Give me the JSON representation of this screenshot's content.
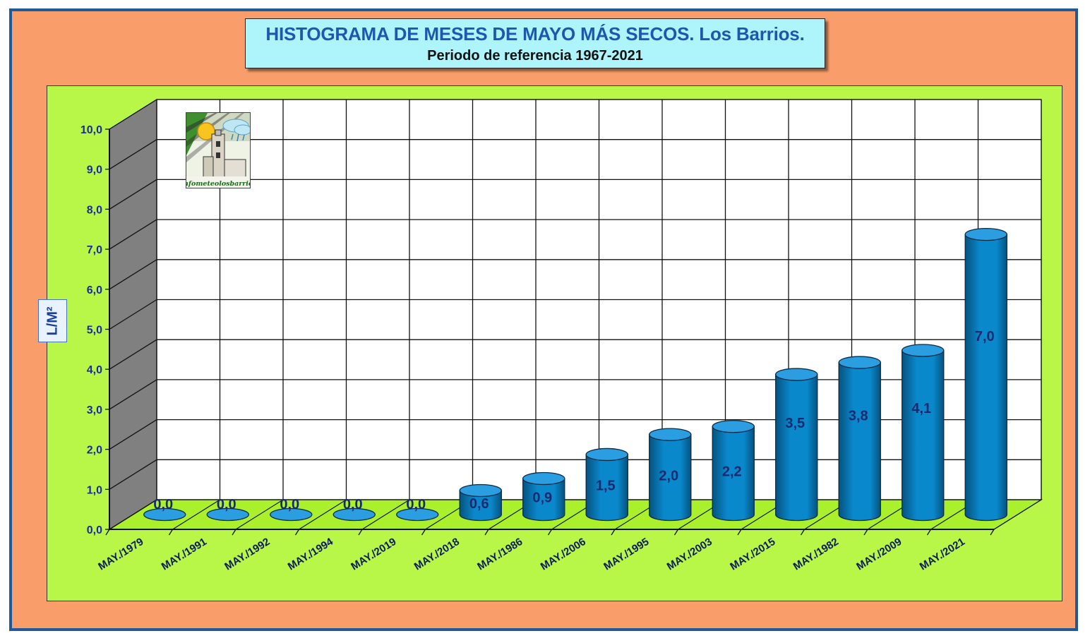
{
  "chart_data": {
    "type": "bar",
    "title": "HISTOGRAMA DE MESES DE MAYO MÁS SECOS. Los Barrios.",
    "subtitle": "Periodo de referencia 1967-2021",
    "xlabel": "",
    "ylabel": "L/M²",
    "ylim": [
      0,
      10
    ],
    "y_ticks": [
      "0,0",
      "1,0",
      "2,0",
      "3,0",
      "4,0",
      "5,0",
      "6,0",
      "7,0",
      "8,0",
      "9,0",
      "10,0"
    ],
    "grid": true,
    "legend": "none",
    "categories": [
      "MAY./1979",
      "MAY./1991",
      "MAY./1992",
      "MAY./1994",
      "MAY./2019",
      "MAY./2018",
      "MAY./1986",
      "MAY./2006",
      "MAY./1995",
      "MAY./2003",
      "MAY./2015",
      "MAY./1982",
      "MAY./2009",
      "MAY./2021"
    ],
    "values": [
      0.0,
      0.0,
      0.0,
      0.0,
      0.0,
      0.6,
      0.9,
      1.5,
      2.0,
      2.2,
      3.5,
      3.8,
      4.1,
      7.0
    ],
    "data_labels": [
      "0,0",
      "0,0",
      "0,0",
      "0,0",
      "0,0",
      "0,6",
      "0,9",
      "1,5",
      "2,0",
      "2,2",
      "3,5",
      "3,8",
      "4,1",
      "7,0"
    ],
    "logo_text": "infometeolosbarrios"
  },
  "colors": {
    "frame": "#f99d6b",
    "frame_border": "#1f5a96",
    "title_box": "#aef4fb",
    "title_text": "#1e56b0",
    "plot_area": "#b8f748",
    "back_wall": "#ffffff",
    "side_wall": "#808080",
    "floor": "#aaf02c",
    "bar": "#0a88cc",
    "bar_dark": "#05537f",
    "bar_top": "#2a9ee0",
    "label_text": "#172a6e",
    "axis_text": "#1b2a9a"
  }
}
